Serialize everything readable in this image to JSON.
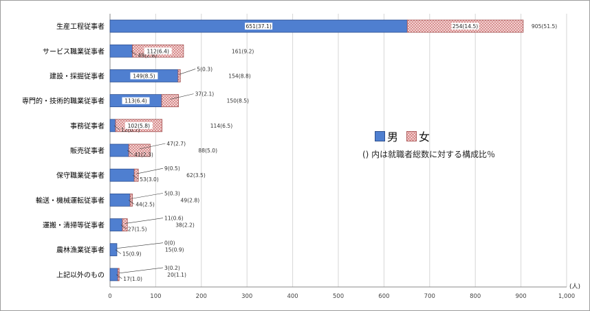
{
  "chart_data": {
    "type": "bar",
    "stacked": true,
    "orientation": "horizontal",
    "categories": [
      "生産工程従事者",
      "サービス職業従事者",
      "建設・採掘従事者",
      "専門的・技術的職業従事者",
      "事務従事者",
      "販売従事者",
      "保守職業従事者",
      "輸送・機械運転従事者",
      "運搬・清掃等従事者",
      "農林漁業従事者",
      "上記以外のもの"
    ],
    "series": [
      {
        "name": "男",
        "values": [
          651,
          49,
          149,
          113,
          12,
          41,
          53,
          44,
          27,
          15,
          17
        ],
        "labels": [
          "651(37.1)",
          "49(2.8)",
          "149(8.5)",
          "113(6.4)",
          "12(0.7)",
          "41(2.3)",
          "53(3.0)",
          "44(2.5)",
          "27(1.5)",
          "15(0.9)",
          "17(1.0)"
        ]
      },
      {
        "name": "女",
        "values": [
          254,
          112,
          5,
          37,
          102,
          47,
          9,
          5,
          11,
          0,
          3
        ],
        "labels": [
          "254(14.5)",
          "112(6.4)",
          "5(0.3)",
          "37(2.1)",
          "102(5.8)",
          "47(2.7)",
          "9(0.5)",
          "5(0.3)",
          "11(0.6)",
          "0(0)",
          "3(0.2)"
        ]
      }
    ],
    "totals": [
      905,
      161,
      154,
      150,
      114,
      88,
      62,
      49,
      38,
      15,
      20
    ],
    "total_labels": [
      "905(51.5)",
      "161(9.2)",
      "154(8.8)",
      "150(8.5)",
      "114(6.5)",
      "88(5.0)",
      "62(3.5)",
      "49(2.8)",
      "38(2.2)",
      "15(0.9)",
      "20(1.1)"
    ],
    "xlim": [
      0,
      1000
    ],
    "xticks": [
      "0",
      "100",
      "200",
      "300",
      "400",
      "500",
      "600",
      "700",
      "800",
      "900",
      "1,000"
    ],
    "unit": "(人)",
    "grid": "vertical",
    "legend": {
      "male": "男",
      "female": "女",
      "note": "() 内は就職者総数に対する構成比％"
    },
    "colors": {
      "male": "#4f7fd0",
      "male_edge": "#2d4f8e",
      "female": "#f6dede",
      "female_hatch": "#c86060",
      "grid": "#d6d6d6",
      "axis": "#888888"
    }
  }
}
